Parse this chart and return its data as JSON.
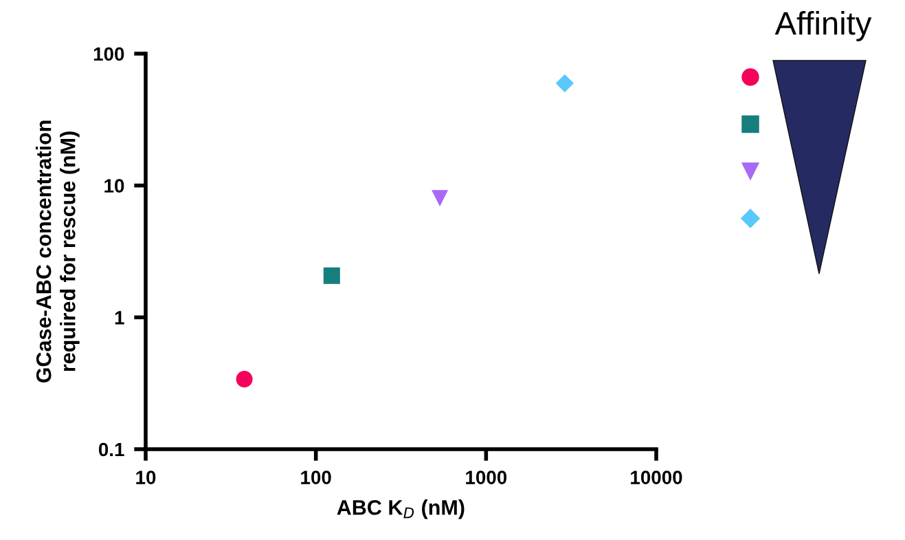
{
  "chart_data": {
    "type": "scatter",
    "xlabel": "ABC K$_{D}$ (nM)",
    "ylabel": "GCase-ABC concentration\nrequired for rescue (nM)",
    "log": "xy",
    "xlim": [
      10,
      10000
    ],
    "ylim": [
      0.1,
      100
    ],
    "xticks": [
      10,
      100,
      1000,
      10000
    ],
    "yticks": [
      0.1,
      1,
      10,
      100
    ],
    "grid": false,
    "annotations": [
      "Affinity"
    ],
    "series": [
      {
        "color": "#f5005a",
        "marker": "circle",
        "x": [
          38
        ],
        "values": [
          0.34
        ]
      },
      {
        "color": "#177e7e",
        "marker": "square",
        "x": [
          124
        ],
        "values": [
          2.07
        ]
      },
      {
        "color": "#a86af5",
        "marker": "triangle",
        "x": [
          535
        ],
        "values": [
          8.0
        ]
      },
      {
        "color": "#5ac8fa",
        "marker": "diamond",
        "x": [
          2900
        ],
        "values": [
          59.6
        ]
      }
    ]
  }
}
